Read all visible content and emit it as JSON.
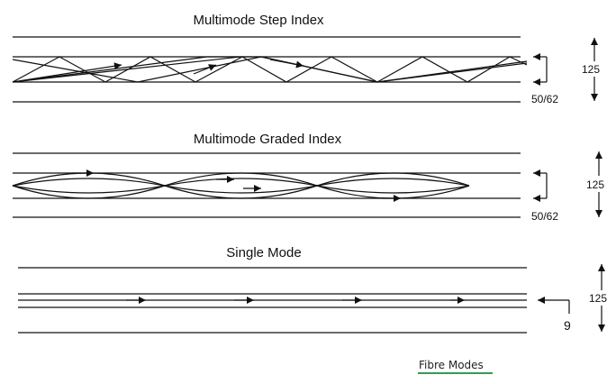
{
  "sections": [
    {
      "title": "Multimode Step Index",
      "core_label": "50/62",
      "cladding_label": "125"
    },
    {
      "title": "Multimode Graded Index",
      "core_label": "50/62",
      "cladding_label": "125"
    },
    {
      "title": "Single Mode",
      "core_label": "9",
      "cladding_label": "125"
    }
  ],
  "caption": "Fibre Modes",
  "colors": {
    "caption_underline": "#2e9e4f",
    "lines": "#111111"
  }
}
